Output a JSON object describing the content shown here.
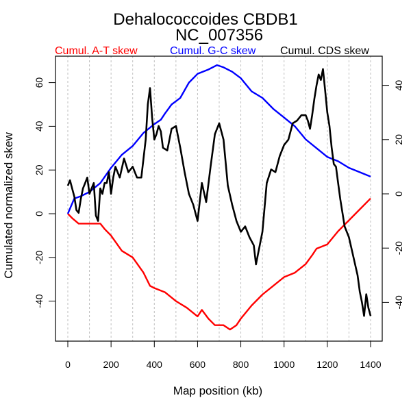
{
  "chart_data": {
    "type": "line",
    "title": "Dehalococcoides CBDB1",
    "subtitle": "NC_007356",
    "xlabel": "Map position (kb)",
    "ylabel": "Cumulated normalized skew",
    "xlim": [
      0,
      1400
    ],
    "ylim": [
      -50,
      68
    ],
    "y2lim": [
      -48,
      48
    ],
    "x_ticks": [
      0,
      200,
      400,
      600,
      800,
      1000,
      1200,
      1400
    ],
    "y_ticks": [
      -40,
      -20,
      0,
      20,
      40,
      60
    ],
    "y2_ticks": [
      -40,
      -20,
      0,
      20,
      40
    ],
    "grid": "vertical dotted every 100 kb",
    "legend_placement": "top",
    "series": [
      {
        "name": "Cumul. A-T skew",
        "axis": "left",
        "color": "#ff0000",
        "x": [
          0,
          20,
          50,
          100,
          150,
          170,
          200,
          250,
          300,
          350,
          380,
          400,
          450,
          500,
          550,
          600,
          620,
          650,
          680,
          720,
          750,
          780,
          800,
          850,
          900,
          950,
          1000,
          1050,
          1100,
          1130,
          1150,
          1200,
          1250,
          1300,
          1350,
          1400
        ],
        "values": [
          0,
          -2,
          -4.5,
          -4.5,
          -4.5,
          -7,
          -10,
          -17,
          -20,
          -27,
          -33,
          -34,
          -36,
          -40,
          -43,
          -47,
          -44,
          -48,
          -51,
          -51,
          -53,
          -51,
          -48,
          -42,
          -37,
          -33,
          -29,
          -27,
          -23,
          -19,
          -16,
          -14,
          -8,
          -3,
          2,
          7
        ]
      },
      {
        "name": "Cumul. G-C skew",
        "axis": "left",
        "color": "#0000ff",
        "x": [
          0,
          30,
          60,
          100,
          150,
          200,
          250,
          300,
          350,
          400,
          430,
          450,
          480,
          520,
          560,
          600,
          650,
          690,
          720,
          760,
          800,
          850,
          900,
          950,
          1000,
          1050,
          1100,
          1150,
          1200,
          1250,
          1300,
          1350,
          1400
        ],
        "values": [
          0,
          7,
          8,
          10,
          14,
          21,
          27,
          31,
          37,
          41,
          43,
          46,
          50,
          53,
          60,
          64,
          66,
          68,
          67,
          65,
          62,
          56,
          53,
          48,
          44,
          40,
          34,
          30,
          26,
          24,
          21,
          19,
          17
        ]
      },
      {
        "name": "Cumul. CDS skew",
        "axis": "right",
        "color": "#000000",
        "x": [
          0,
          10,
          20,
          30,
          40,
          50,
          60,
          70,
          80,
          90,
          100,
          110,
          120,
          130,
          140,
          150,
          160,
          170,
          180,
          190,
          200,
          210,
          220,
          240,
          260,
          280,
          300,
          320,
          340,
          350,
          360,
          370,
          380,
          390,
          400,
          410,
          420,
          430,
          440,
          460,
          480,
          500,
          520,
          540,
          560,
          580,
          600,
          620,
          640,
          660,
          680,
          700,
          720,
          740,
          760,
          780,
          800,
          820,
          840,
          860,
          870,
          880,
          900,
          920,
          940,
          960,
          980,
          1000,
          1020,
          1040,
          1060,
          1080,
          1100,
          1110,
          1120,
          1130,
          1140,
          1150,
          1160,
          1170,
          1180,
          1190,
          1200,
          1210,
          1220,
          1230,
          1240,
          1250,
          1260,
          1280,
          1300,
          1320,
          1340,
          1350,
          1360,
          1370,
          1380,
          1390,
          1400
        ],
        "values": [
          3,
          5,
          2,
          -1,
          -6,
          -7,
          -2,
          2,
          4,
          6,
          0,
          2,
          4,
          -8,
          -10,
          2,
          0,
          4,
          4,
          8,
          0,
          6,
          10,
          6,
          13,
          8,
          10,
          6,
          6,
          13,
          20,
          33,
          39,
          28,
          20,
          22,
          25,
          23,
          17,
          16,
          24,
          25,
          17,
          8,
          0,
          -4,
          -10,
          4,
          -3,
          10,
          22,
          26,
          20,
          3,
          -4,
          -10,
          -14,
          -12,
          -16,
          -19,
          -26,
          -22,
          -14,
          4,
          9,
          8,
          14,
          18,
          20,
          26,
          27,
          29,
          29,
          27,
          24,
          29,
          35,
          40,
          44,
          42,
          46,
          38,
          30,
          25,
          17,
          11,
          10,
          4,
          -2,
          -12,
          -16,
          -23,
          -30,
          -36,
          -40,
          -45,
          -37,
          -42,
          -45
        ]
      }
    ]
  }
}
